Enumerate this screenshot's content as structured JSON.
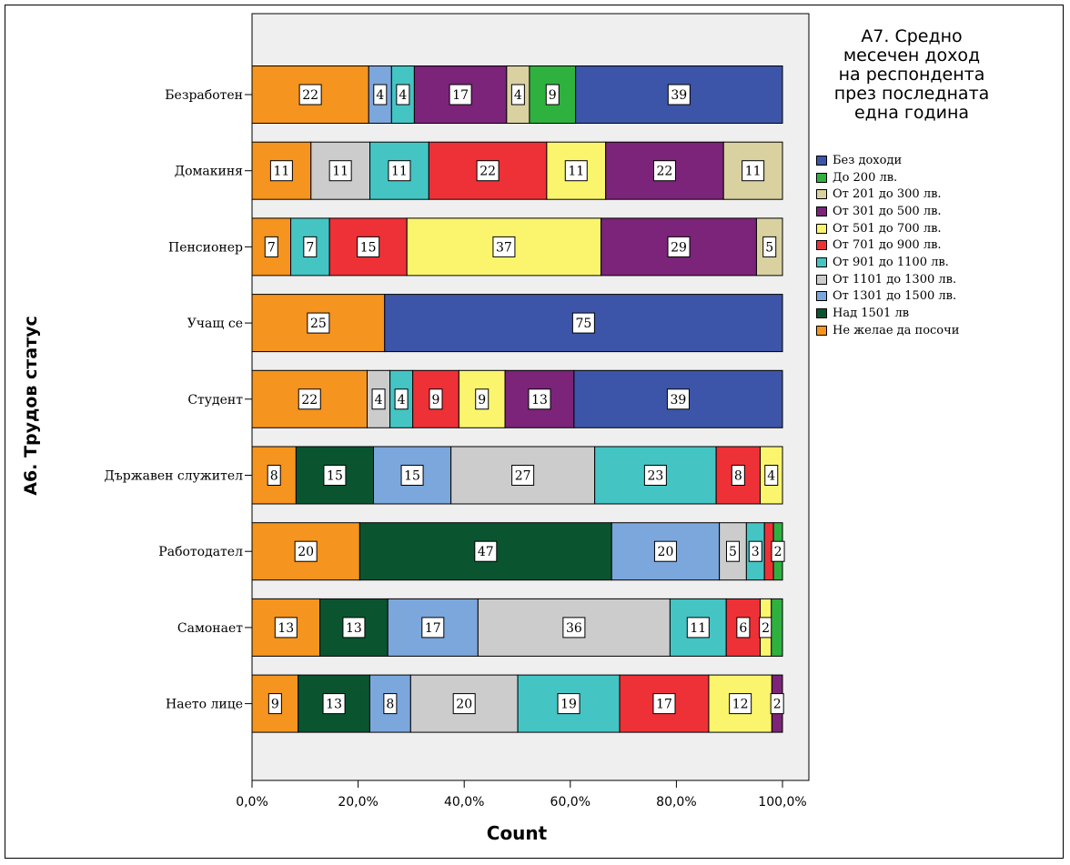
{
  "chart_data": {
    "type": "bar",
    "orientation": "horizontal",
    "stacked": true,
    "xlabel": "Count",
    "ylabel": "А6. Трудов статус",
    "xlim": [
      0,
      100
    ],
    "x_ticks": [
      "0,0%",
      "20,0%",
      "40,0%",
      "60,0%",
      "80,0%",
      "100,0%"
    ],
    "legend_title": [
      "А7. Средно",
      "месечен доход",
      "на респондента",
      "през последната",
      "една година"
    ],
    "legend_position": "right",
    "legend": [
      {
        "name": "Без доходи",
        "color": "#3D55A8"
      },
      {
        "name": "До 200 лв.",
        "color": "#2FB13F"
      },
      {
        "name": "От 201 до 300 лв.",
        "color": "#D9D1A0"
      },
      {
        "name": "От 301 до 500 лв.",
        "color": "#7B2479"
      },
      {
        "name": "От 501 до 700 лв.",
        "color": "#FBF56E"
      },
      {
        "name": "От 701 до 900 лв.",
        "color": "#EE3137"
      },
      {
        "name": "От 901 до 1100 лв.",
        "color": "#45C4C4"
      },
      {
        "name": "От 1101 до 1300 лв.",
        "color": "#CCCCCC"
      },
      {
        "name": "От 1301 до 1500 лв.",
        "color": "#7BA7DD"
      },
      {
        "name": "Над 1501  лв",
        "color": "#0A5530"
      },
      {
        "name": "Не желае да посочи",
        "color": "#F5941E"
      }
    ],
    "categories": [
      {
        "name": "Безработен",
        "segments": [
          {
            "c": "Не желае да посочи",
            "v": 22,
            "label": "22"
          },
          {
            "c": "От 1301 до 1500 лв.",
            "v": 4.3,
            "label": "4"
          },
          {
            "c": "От 901 до 1100 лв.",
            "v": 4.3,
            "label": "4"
          },
          {
            "c": "От 301 до 500 лв.",
            "v": 17.4,
            "label": "17"
          },
          {
            "c": "От 201 до 300 лв.",
            "v": 4.3,
            "label": "4"
          },
          {
            "c": "До 200 лв.",
            "v": 8.7,
            "label": "9"
          },
          {
            "c": "Без доходи",
            "v": 39,
            "label": "39"
          }
        ]
      },
      {
        "name": "Домакиня",
        "segments": [
          {
            "c": "Не желае да посочи",
            "v": 11.1,
            "label": "11"
          },
          {
            "c": "От 1101 до 1300 лв.",
            "v": 11.1,
            "label": "11"
          },
          {
            "c": "От 901 до 1100 лв.",
            "v": 11.1,
            "label": "11"
          },
          {
            "c": "От 701 до 900 лв.",
            "v": 22.2,
            "label": "22"
          },
          {
            "c": "От 501 до 700 лв.",
            "v": 11.1,
            "label": "11"
          },
          {
            "c": "От 301 до 500 лв.",
            "v": 22.2,
            "label": "22"
          },
          {
            "c": "От 201 до 300 лв.",
            "v": 11.1,
            "label": "11"
          }
        ]
      },
      {
        "name": "Пенсионер",
        "segments": [
          {
            "c": "Не желае да посочи",
            "v": 7.3,
            "label": "7"
          },
          {
            "c": "От 901 до 1100 лв.",
            "v": 7.3,
            "label": "7"
          },
          {
            "c": "От 701 до 900 лв.",
            "v": 14.6,
            "label": "15"
          },
          {
            "c": "От 501 до 700 лв.",
            "v": 36.6,
            "label": "37"
          },
          {
            "c": "От 301 до 500 лв.",
            "v": 29.3,
            "label": "29"
          },
          {
            "c": "От 201 до 300 лв.",
            "v": 4.9,
            "label": "5"
          }
        ]
      },
      {
        "name": "Учащ се",
        "segments": [
          {
            "c": "Не желае да посочи",
            "v": 25,
            "label": "25"
          },
          {
            "c": "Без доходи",
            "v": 75,
            "label": "75"
          }
        ]
      },
      {
        "name": "Студент",
        "segments": [
          {
            "c": "Не желае да посочи",
            "v": 21.7,
            "label": "22"
          },
          {
            "c": "От 1101 до 1300 лв.",
            "v": 4.3,
            "label": "4"
          },
          {
            "c": "От 901 до 1100 лв.",
            "v": 4.3,
            "label": "4"
          },
          {
            "c": "От 701 до 900 лв.",
            "v": 8.7,
            "label": "9"
          },
          {
            "c": "От 501 до 700 лв.",
            "v": 8.7,
            "label": "9"
          },
          {
            "c": "От 301 до 500 лв.",
            "v": 13.0,
            "label": "13"
          },
          {
            "c": "Без доходи",
            "v": 39.3,
            "label": "39"
          }
        ]
      },
      {
        "name": "Държавен служител",
        "segments": [
          {
            "c": "Не желае да посочи",
            "v": 8.3,
            "label": "8"
          },
          {
            "c": "Над 1501  лв",
            "v": 14.6,
            "label": "15"
          },
          {
            "c": "От 1301 до 1500 лв.",
            "v": 14.6,
            "label": "15"
          },
          {
            "c": "От 1101 до 1300 лв.",
            "v": 27.1,
            "label": "27"
          },
          {
            "c": "От 901 до 1100 лв.",
            "v": 22.9,
            "label": "23"
          },
          {
            "c": "От 701 до 900 лв.",
            "v": 8.3,
            "label": "8"
          },
          {
            "c": "От 501 до 700 лв.",
            "v": 4.2,
            "label": "4"
          }
        ]
      },
      {
        "name": "Работодател",
        "segments": [
          {
            "c": "Не желае да посочи",
            "v": 20.3,
            "label": "20"
          },
          {
            "c": "Над 1501  лв",
            "v": 47.5,
            "label": "47"
          },
          {
            "c": "От 1301 до 1500 лв.",
            "v": 20.3,
            "label": "20"
          },
          {
            "c": "От 1101 до 1300 лв.",
            "v": 5.1,
            "label": "5"
          },
          {
            "c": "От 901 до 1100 лв.",
            "v": 3.4,
            "label": "3"
          },
          {
            "c": "От 701 до 900 лв.",
            "v": 1.7,
            "label": ""
          },
          {
            "c": "До 200 лв.",
            "v": 1.7,
            "label": "2"
          }
        ]
      },
      {
        "name": "Самонает",
        "segments": [
          {
            "c": "Не желае да посочи",
            "v": 12.8,
            "label": "13"
          },
          {
            "c": "Над 1501  лв",
            "v": 12.8,
            "label": "13"
          },
          {
            "c": "От 1301 до 1500 лв.",
            "v": 17.0,
            "label": "17"
          },
          {
            "c": "От 1101 до 1300 лв.",
            "v": 36.2,
            "label": "36"
          },
          {
            "c": "От 901 до 1100 лв.",
            "v": 10.6,
            "label": "11"
          },
          {
            "c": "От 701 до 900 лв.",
            "v": 6.4,
            "label": "6"
          },
          {
            "c": "От 501 до 700 лв.",
            "v": 2.1,
            "label": "2"
          },
          {
            "c": "До 200 лв.",
            "v": 2.1,
            "label": ""
          }
        ]
      },
      {
        "name": "Наето лице",
        "segments": [
          {
            "c": "Не желае да посочи",
            "v": 8.7,
            "label": "9"
          },
          {
            "c": "Над 1501  лв",
            "v": 13.5,
            "label": "13"
          },
          {
            "c": "От 1301 до 1500 лв.",
            "v": 7.7,
            "label": "8"
          },
          {
            "c": "От 1101 до 1300 лв.",
            "v": 20.2,
            "label": "20"
          },
          {
            "c": "От 901 до 1100 лв.",
            "v": 19.2,
            "label": "19"
          },
          {
            "c": "От 701 до 900 лв.",
            "v": 16.8,
            "label": "17"
          },
          {
            "c": "От 501 до 700 лв.",
            "v": 11.9,
            "label": "12"
          },
          {
            "c": "От 301 до 500 лв.",
            "v": 2.0,
            "label": "2"
          }
        ]
      }
    ]
  }
}
